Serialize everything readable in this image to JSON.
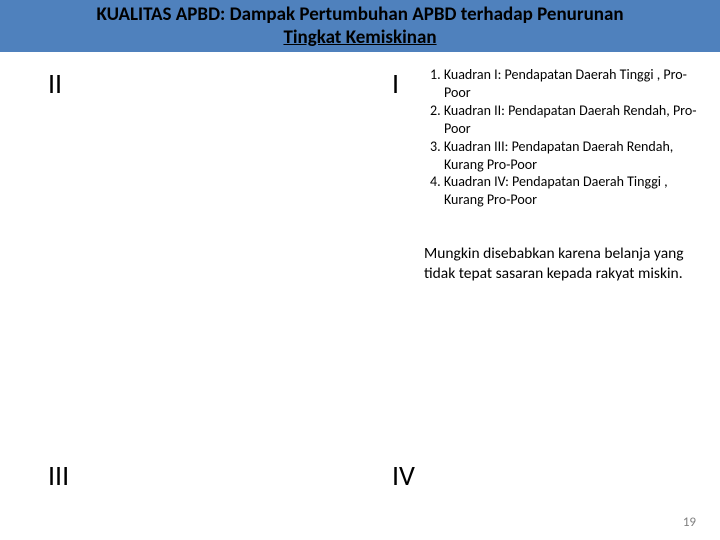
{
  "title": {
    "line1": "KUALITAS APBD: Dampak Pertumbuhan APBD terhadap Penurunan",
    "line2": "Tingkat Kemiskinan"
  },
  "quadrants": {
    "q1": "I",
    "q2": "II",
    "q3": "III",
    "q4": "IV"
  },
  "legend": {
    "item1_num": "1.",
    "item1_text": "Kuadran I: Pendapatan Daerah Tinggi , Pro-Poor",
    "item2_num": "2.",
    "item2_text": "Kuadran II: Pendapatan Daerah Rendah, Pro-Poor",
    "item3_num": "3.",
    "item3_text": "Kuadran III: Pendapatan Daerah Rendah, Kurang Pro-Poor",
    "item4_num": "4.",
    "item4_text": "Kuadran IV: Pendapatan Daerah Tinggi , Kurang Pro-Poor"
  },
  "note": "Mungkin disebabkan karena belanja yang tidak tepat sasaran kepada rakyat miskin.",
  "page_number": "19",
  "colors": {
    "title_bg": "#4f81bd",
    "text": "#000000",
    "page_num": "#808080",
    "background": "#ffffff"
  }
}
